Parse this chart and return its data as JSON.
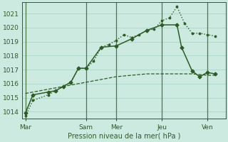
{
  "background_color": "#cceae0",
  "grid_color": "#aad4c8",
  "line_color": "#2d5c28",
  "xlabel": "Pression niveau de la mer( hPa )",
  "ylim": [
    1013.5,
    1021.8
  ],
  "yticks": [
    1014,
    1015,
    1016,
    1017,
    1018,
    1019,
    1020,
    1021
  ],
  "xtick_labels": [
    "Mar",
    "Sam",
    "Mer",
    "Jeu",
    "Ven"
  ],
  "xtick_positions": [
    0,
    4,
    6,
    9,
    12
  ],
  "xlim": [
    -0.2,
    13.2
  ],
  "series1_dotted": {
    "x": [
      0,
      0.5,
      1.5,
      2,
      2.5,
      3,
      3.5,
      4,
      4.5,
      5,
      5.5,
      6,
      6.5,
      7,
      7.5,
      8,
      8.5,
      9,
      9.5,
      10,
      10.5,
      11,
      11.5,
      12,
      12.5
    ],
    "y": [
      1013.7,
      1014.8,
      1015.2,
      1015.5,
      1015.8,
      1016.1,
      1017.1,
      1017.1,
      1017.6,
      1018.6,
      1018.8,
      1019.1,
      1019.5,
      1019.3,
      1019.5,
      1019.8,
      1019.9,
      1020.5,
      1020.7,
      1021.5,
      1020.3,
      1019.6,
      1019.6,
      1019.5,
      1019.4
    ]
  },
  "series2_solid_diamond": {
    "x": [
      0,
      0.5,
      1.5,
      2,
      2.5,
      3,
      3.5,
      4,
      5,
      6,
      7,
      8,
      9,
      10,
      10.3,
      11,
      11.5,
      12,
      12.5
    ],
    "y": [
      1013.9,
      1015.2,
      1015.4,
      1015.5,
      1015.8,
      1016.1,
      1017.1,
      1017.1,
      1018.6,
      1018.7,
      1019.2,
      1019.8,
      1020.2,
      1020.2,
      1018.6,
      1016.9,
      1016.5,
      1016.8,
      1016.7
    ]
  },
  "series3_dashed": {
    "x": [
      0,
      1,
      2,
      3,
      4,
      5,
      6,
      7,
      8,
      9,
      10,
      11,
      12,
      12.5
    ],
    "y": [
      1015.3,
      1015.5,
      1015.7,
      1015.9,
      1016.1,
      1016.3,
      1016.5,
      1016.6,
      1016.7,
      1016.7,
      1016.7,
      1016.7,
      1016.6,
      1016.6
    ]
  }
}
